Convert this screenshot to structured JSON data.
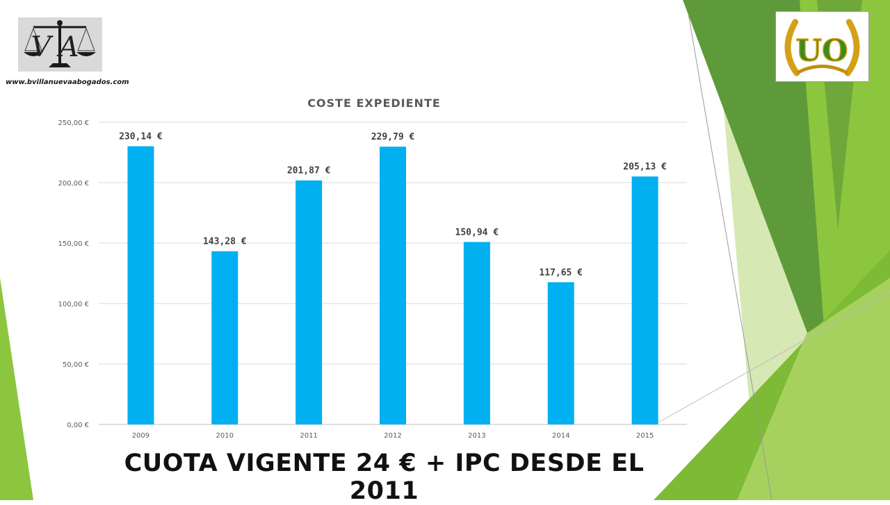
{
  "logos": {
    "va_initials": "VA",
    "website": "www.bvillanuevaabogados.com",
    "uo_initials": "UO"
  },
  "footer": {
    "headline": "CUOTA VIGENTE 24 € + IPC DESDE EL 2011"
  },
  "colors": {
    "bar": "#00b0f0",
    "grid": "#d9d9d9",
    "text": "#404040",
    "green_dark": "#5f9a3a",
    "green_mid": "#8cc63f",
    "green_light": "#c9e39b"
  },
  "chart_data": {
    "type": "bar",
    "title": "COSTE EXPEDIENTE",
    "categories": [
      "2009",
      "2010",
      "2011",
      "2012",
      "2013",
      "2014",
      "2015"
    ],
    "values": [
      230.14,
      143.28,
      201.87,
      229.79,
      150.94,
      117.65,
      205.13
    ],
    "value_labels": [
      "230,14 €",
      "143,28 €",
      "201,87 €",
      "229,79 €",
      "150,94 €",
      "117,65 €",
      "205,13 €"
    ],
    "y_ticks": [
      0,
      50,
      100,
      150,
      200,
      250
    ],
    "y_tick_labels": [
      "0,00 €",
      "50,00 €",
      "100,00 €",
      "150,00 €",
      "200,00 €",
      "250,00 €"
    ],
    "ylim": [
      0,
      250
    ],
    "xlabel": "",
    "ylabel": "",
    "grid": true,
    "legend": false
  }
}
